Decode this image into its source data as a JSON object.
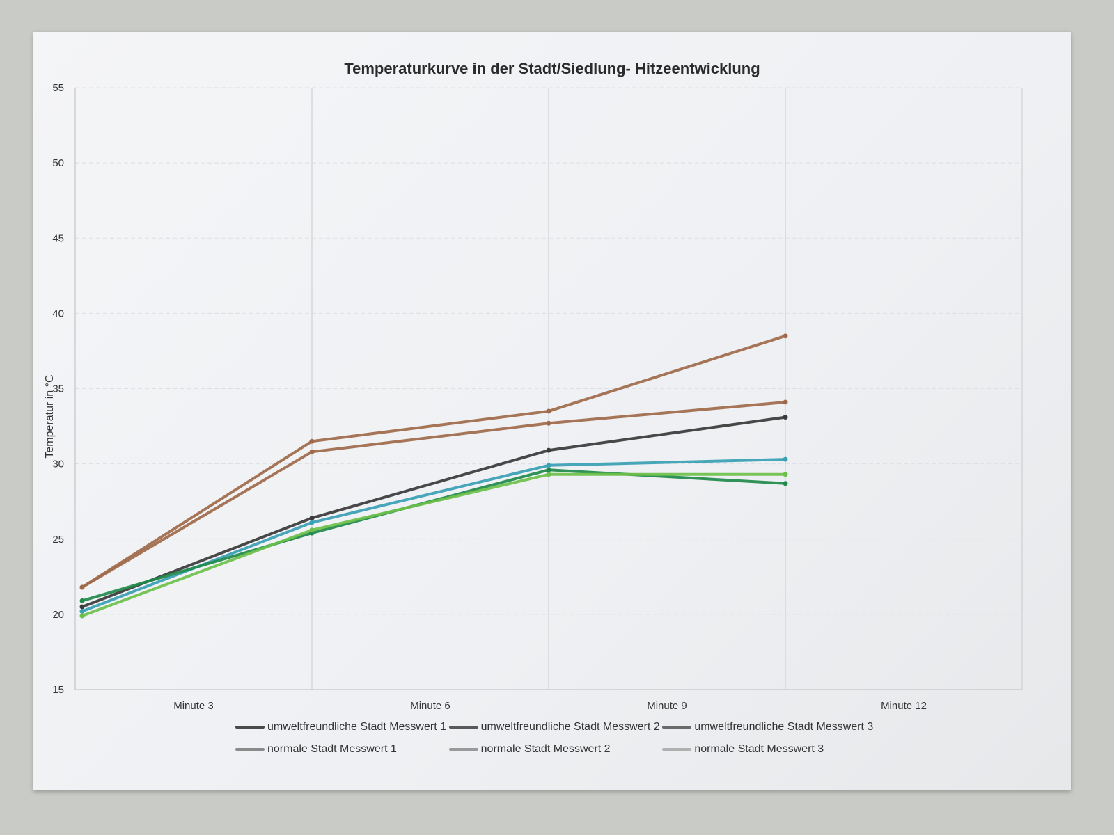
{
  "chart_data": {
    "type": "line",
    "title": "Temperaturkurve in der Stadt/Siedlung- Hitzeentwicklung",
    "ylabel": "Temperatur in °C",
    "xlabel": "",
    "categories": [
      "Minute 3",
      "Minute 6",
      "Minute 9",
      "Minute 12"
    ],
    "ylim": [
      15,
      55
    ],
    "yticks": [
      "15",
      "20",
      "25",
      "30",
      "35",
      "40",
      "45",
      "50",
      "55"
    ],
    "grid": true,
    "legend_position": "bottom",
    "hand_drawn_series": [
      {
        "color": "#a06a4a",
        "values": [
          21.8,
          31.5,
          33.5,
          38.5
        ]
      },
      {
        "color": "#a06a4a",
        "values": [
          21.8,
          30.8,
          32.7,
          34.1
        ]
      },
      {
        "color": "#3a3a3a",
        "values": [
          20.5,
          26.4,
          30.9,
          33.1
        ]
      },
      {
        "color": "#3aa0b4",
        "values": [
          20.2,
          26.1,
          29.9,
          30.3
        ]
      },
      {
        "color": "#1f8a4a",
        "values": [
          20.9,
          25.4,
          29.6,
          28.7
        ]
      },
      {
        "color": "#6cc04a",
        "values": [
          19.9,
          25.6,
          29.3,
          29.3
        ]
      }
    ],
    "legend": [
      {
        "label": "umweltfreundliche Stadt Messwert 1",
        "color": "#4a4a4a"
      },
      {
        "label": "umweltfreundliche Stadt Messwert 2",
        "color": "#5a5a5a"
      },
      {
        "label": "umweltfreundliche Stadt Messwert 3",
        "color": "#6a6a6a"
      },
      {
        "label": "normale Stadt Messwert 1",
        "color": "#8a8a8a"
      },
      {
        "label": "normale Stadt Messwert 2",
        "color": "#9a9a9a"
      },
      {
        "label": "normale Stadt Messwert 3",
        "color": "#b0b0b0"
      }
    ]
  }
}
